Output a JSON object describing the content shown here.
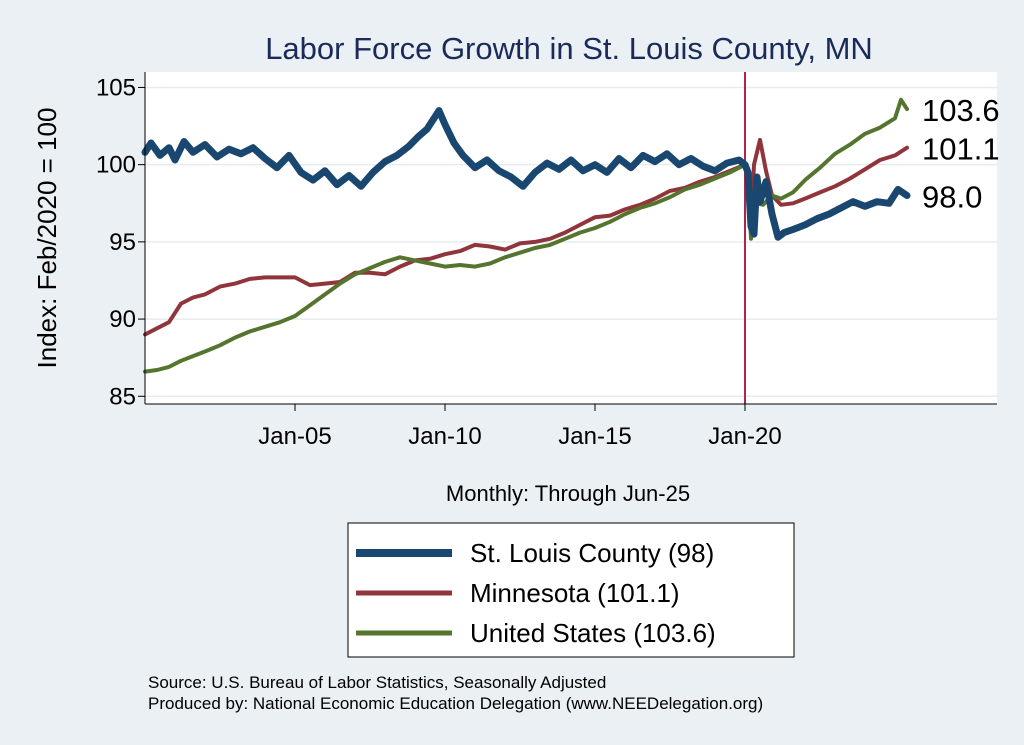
{
  "chart_data": {
    "type": "line",
    "title": "Labor Force Growth in St. Louis  County, MN",
    "xlabel": "Monthly: Through Jun-25",
    "ylabel": "Index: Feb/2020 = 100",
    "ylim": [
      84.5,
      106
    ],
    "yticks": [
      85,
      90,
      95,
      100,
      105
    ],
    "xlim": [
      2000.0,
      2028.4
    ],
    "xticks": [
      {
        "label": "Jan-05",
        "value": 2005.0
      },
      {
        "label": "Jan-10",
        "value": 2010.0
      },
      {
        "label": "Jan-15",
        "value": 2015.0
      },
      {
        "label": "Jan-20",
        "value": 2020.0
      }
    ],
    "vline": {
      "x": 2020.0,
      "color": "#b0234a"
    },
    "grid": true,
    "series": [
      {
        "name": "St. Louis  County (98)",
        "color": "#1a476f",
        "end_label": "98.0",
        "x": [
          2000.0,
          2000.2,
          2000.5,
          2000.8,
          2001.0,
          2001.3,
          2001.6,
          2002.0,
          2002.4,
          2002.8,
          2003.2,
          2003.6,
          2004.0,
          2004.4,
          2004.8,
          2005.2,
          2005.6,
          2006.0,
          2006.4,
          2006.8,
          2007.2,
          2007.6,
          2008.0,
          2008.4,
          2008.8,
          2009.1,
          2009.4,
          2009.6,
          2009.8,
          2010.0,
          2010.3,
          2010.6,
          2011.0,
          2011.4,
          2011.8,
          2012.2,
          2012.6,
          2013.0,
          2013.4,
          2013.8,
          2014.2,
          2014.6,
          2015.0,
          2015.4,
          2015.8,
          2016.2,
          2016.6,
          2017.0,
          2017.4,
          2017.8,
          2018.2,
          2018.6,
          2019.0,
          2019.4,
          2019.8,
          2020.0,
          2020.1,
          2020.2,
          2020.3,
          2020.4,
          2020.5,
          2020.7,
          2020.9,
          2021.1,
          2021.3,
          2021.6,
          2022.0,
          2022.4,
          2022.8,
          2023.2,
          2023.6,
          2024.0,
          2024.4,
          2024.8,
          2025.1,
          2025.4
        ],
        "y": [
          100.8,
          101.4,
          100.6,
          101.1,
          100.3,
          101.5,
          100.8,
          101.3,
          100.5,
          101.0,
          100.7,
          101.1,
          100.4,
          99.8,
          100.6,
          99.5,
          99.0,
          99.6,
          98.7,
          99.3,
          98.6,
          99.5,
          100.2,
          100.6,
          101.2,
          101.8,
          102.3,
          102.9,
          103.5,
          102.6,
          101.4,
          100.6,
          99.8,
          100.3,
          99.6,
          99.2,
          98.6,
          99.5,
          100.1,
          99.7,
          100.3,
          99.6,
          100.0,
          99.5,
          100.4,
          99.8,
          100.6,
          100.2,
          100.7,
          100.0,
          100.4,
          99.9,
          99.6,
          100.1,
          100.3,
          100.0,
          99.5,
          96.0,
          95.5,
          99.2,
          97.6,
          98.9,
          96.8,
          95.3,
          95.6,
          95.8,
          96.1,
          96.5,
          96.8,
          97.2,
          97.6,
          97.3,
          97.6,
          97.5,
          98.4,
          98.0
        ]
      },
      {
        "name": "Minnesota (101.1)",
        "color": "#90353b",
        "end_label": "101.1",
        "x": [
          2000.0,
          2000.4,
          2000.8,
          2001.2,
          2001.6,
          2002.0,
          2002.5,
          2003.0,
          2003.5,
          2004.0,
          2004.5,
          2005.0,
          2005.5,
          2006.0,
          2006.5,
          2007.0,
          2007.5,
          2008.0,
          2008.5,
          2009.0,
          2009.5,
          2010.0,
          2010.5,
          2011.0,
          2011.5,
          2012.0,
          2012.5,
          2013.0,
          2013.5,
          2014.0,
          2014.5,
          2015.0,
          2015.5,
          2016.0,
          2016.5,
          2017.0,
          2017.5,
          2018.0,
          2018.5,
          2019.0,
          2019.5,
          2020.0,
          2020.1,
          2020.2,
          2020.3,
          2020.5,
          2020.7,
          2020.9,
          2021.2,
          2021.6,
          2022.0,
          2022.5,
          2023.0,
          2023.5,
          2024.0,
          2024.5,
          2025.0,
          2025.4
        ],
        "y": [
          89.0,
          89.4,
          89.8,
          91.0,
          91.4,
          91.6,
          92.1,
          92.3,
          92.6,
          92.7,
          92.7,
          92.7,
          92.2,
          92.3,
          92.4,
          93.0,
          93.0,
          92.9,
          93.4,
          93.8,
          93.9,
          94.2,
          94.4,
          94.8,
          94.7,
          94.5,
          94.9,
          95.0,
          95.2,
          95.6,
          96.1,
          96.6,
          96.7,
          97.1,
          97.4,
          97.8,
          98.3,
          98.5,
          98.9,
          99.2,
          99.6,
          100.0,
          99.0,
          96.0,
          100.0,
          101.6,
          99.6,
          98.0,
          97.4,
          97.5,
          97.8,
          98.2,
          98.6,
          99.1,
          99.7,
          100.3,
          100.6,
          101.1
        ]
      },
      {
        "name": "United States (103.6)",
        "color": "#55752f",
        "end_label": "103.6",
        "x": [
          2000.0,
          2000.4,
          2000.8,
          2001.2,
          2001.6,
          2002.0,
          2002.5,
          2003.0,
          2003.5,
          2004.0,
          2004.5,
          2005.0,
          2005.5,
          2006.0,
          2006.5,
          2007.0,
          2007.5,
          2008.0,
          2008.5,
          2009.0,
          2009.5,
          2010.0,
          2010.5,
          2011.0,
          2011.5,
          2012.0,
          2012.5,
          2013.0,
          2013.5,
          2014.0,
          2014.5,
          2015.0,
          2015.5,
          2016.0,
          2016.5,
          2017.0,
          2017.5,
          2018.0,
          2018.5,
          2019.0,
          2019.5,
          2020.0,
          2020.1,
          2020.2,
          2020.3,
          2020.4,
          2020.6,
          2020.9,
          2021.2,
          2021.6,
          2022.0,
          2022.5,
          2023.0,
          2023.5,
          2024.0,
          2024.5,
          2025.0,
          2025.2,
          2025.4
        ],
        "y": [
          86.6,
          86.7,
          86.9,
          87.3,
          87.6,
          87.9,
          88.3,
          88.8,
          89.2,
          89.5,
          89.8,
          90.2,
          90.9,
          91.6,
          92.3,
          92.9,
          93.3,
          93.7,
          94.0,
          93.8,
          93.6,
          93.4,
          93.5,
          93.4,
          93.6,
          94.0,
          94.3,
          94.6,
          94.8,
          95.2,
          95.6,
          95.9,
          96.3,
          96.8,
          97.2,
          97.5,
          97.9,
          98.4,
          98.7,
          99.1,
          99.5,
          100.0,
          99.5,
          95.2,
          97.0,
          97.5,
          97.4,
          98.0,
          97.8,
          98.2,
          99.0,
          99.8,
          100.7,
          101.3,
          102.0,
          102.4,
          103.0,
          104.2,
          103.6
        ]
      }
    ],
    "legend": {
      "position": "bottom-center",
      "entries": [
        "St. Louis  County (98)",
        "Minnesota (101.1)",
        "United States (103.6)"
      ]
    }
  },
  "footer": {
    "source": "Source: U.S. Bureau of Labor Statistics, Seasonally Adjusted",
    "produced": "Produced by: National Economic Education Delegation (www.NEEDelegation.org)"
  }
}
